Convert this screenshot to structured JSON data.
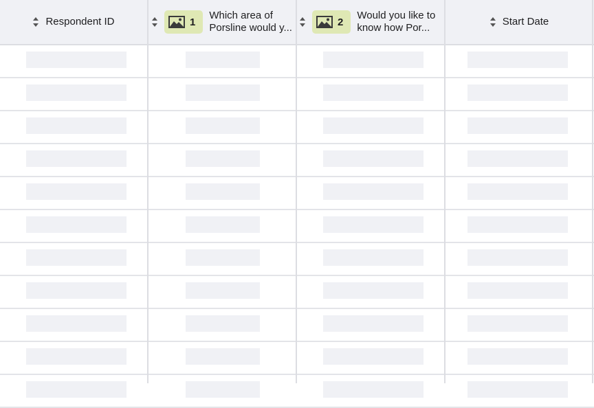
{
  "columns": [
    {
      "label": "Respondent ID",
      "has_badge": false
    },
    {
      "label": "Which area of Porsline would y...",
      "line1": "Which area of",
      "line2": "Porsline would y...",
      "badge_number": "1",
      "badge_icon": "image-icon",
      "has_badge": true
    },
    {
      "label": "Would you like to know how Por...",
      "line1": "Would you like to",
      "line2": "know how Por...",
      "badge_number": "2",
      "badge_icon": "image-icon",
      "has_badge": true
    },
    {
      "label": "Start Date",
      "has_badge": false
    }
  ],
  "skeleton_rows": 11,
  "colors": {
    "header_bg": "#f0f1f5",
    "badge_bg": "#dfe8b4",
    "placeholder": "#f0f1f5",
    "border": "#dcdde2"
  }
}
